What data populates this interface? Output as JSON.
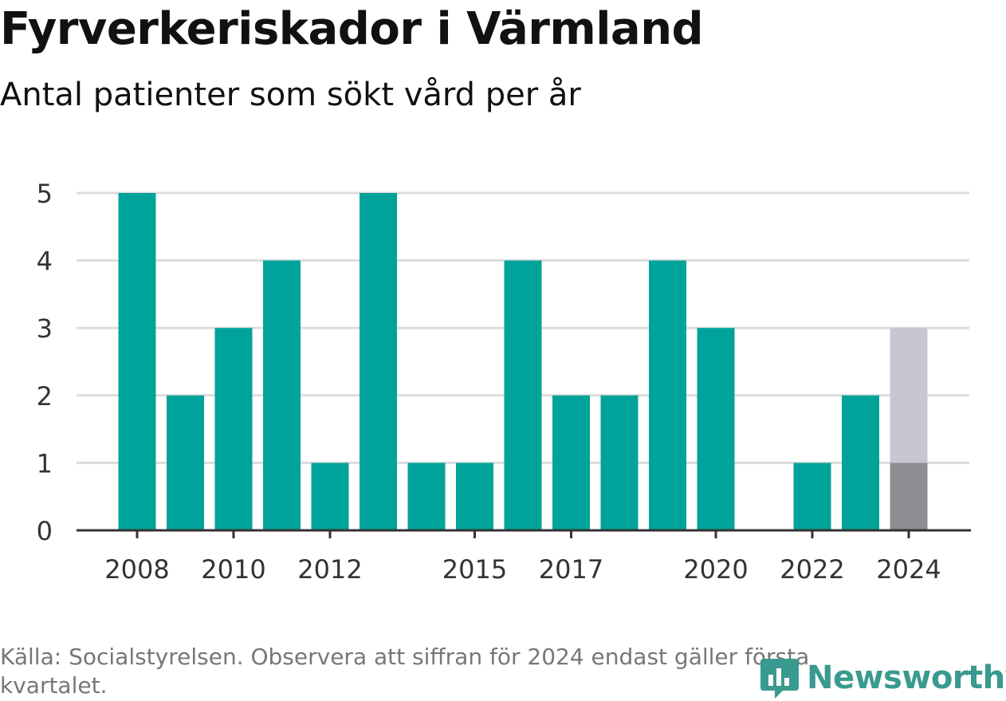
{
  "header": {
    "title": "Fyrverkeriskador i Värmland",
    "subtitle": "Antal patienter som sökt vård per år"
  },
  "footer": {
    "source_note": "Källa: Socialstyrelsen. Observera att siffran för 2024 endast gäller första kvartalet.",
    "logo_text": "Newsworthy"
  },
  "colors": {
    "bar": "#00a39a",
    "bar_partial": "#8e8e92",
    "bar_projection": "#c8c7d1",
    "grid": "#dcdcdc",
    "axis": "#333333",
    "logo": "#3a9a8f"
  },
  "chart_data": {
    "type": "bar",
    "title": "Fyrverkeriskador i Värmland",
    "subtitle": "Antal patienter som sökt vård per år",
    "xlabel": "",
    "ylabel": "",
    "ylim": [
      0,
      5
    ],
    "yticks": [
      0,
      1,
      2,
      3,
      4,
      5
    ],
    "grid": true,
    "categories": [
      "2008",
      "2009",
      "2010",
      "2011",
      "2012",
      "2013",
      "2014",
      "2015",
      "2016",
      "2017",
      "2018",
      "2019",
      "2020",
      "2021",
      "2022",
      "2023",
      "2024"
    ],
    "xtick_labels": [
      "2008",
      "2010",
      "2012",
      "2015",
      "2017",
      "2020",
      "2022",
      "2024"
    ],
    "values": [
      5,
      2,
      3,
      4,
      1,
      5,
      1,
      1,
      4,
      2,
      2,
      4,
      3,
      0,
      1,
      2,
      1
    ],
    "partial_year": {
      "category": "2024",
      "value": 1,
      "projected_total": 3
    }
  }
}
